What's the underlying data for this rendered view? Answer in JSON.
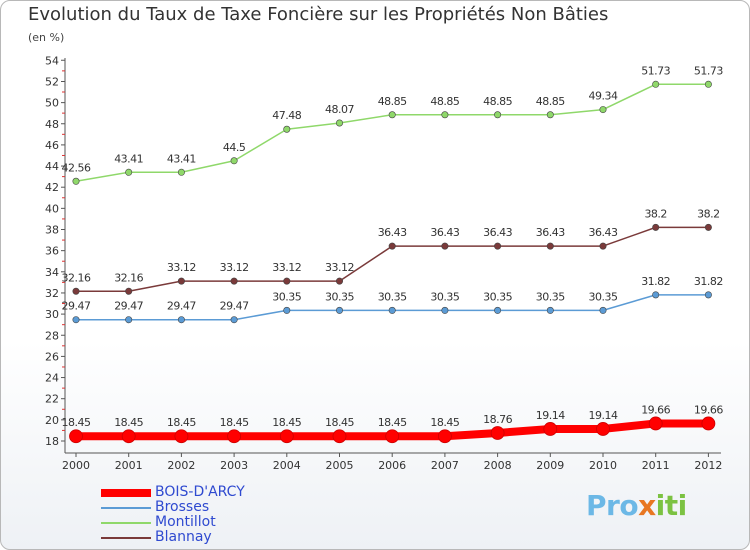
{
  "chart_data": {
    "type": "line",
    "title": "Evolution du Taux de Taxe Foncière sur les Propriétés Non Bâties",
    "ylabel": "(en %)",
    "categories": [
      "2000",
      "2001",
      "2002",
      "2003",
      "2004",
      "2005",
      "2006",
      "2007",
      "2008",
      "2009",
      "2010",
      "2011",
      "2012"
    ],
    "ylim": [
      17,
      55
    ],
    "yticks": [
      18,
      20,
      22,
      24,
      26,
      28,
      30,
      32,
      34,
      36,
      38,
      40,
      42,
      44,
      46,
      48,
      50,
      52,
      54
    ],
    "grid": false,
    "legend_position": "bottom-left",
    "series": [
      {
        "name": "BOIS-D'ARCY",
        "color": "#ff0000",
        "labels": [
          "18.45",
          "18.45",
          "18.45",
          "18.45",
          "18.45",
          "18.45",
          "18.45",
          "18.45",
          "18.76",
          "19.14",
          "19.14",
          "19.66",
          "19.66"
        ],
        "values": [
          18.45,
          18.45,
          18.45,
          18.45,
          18.45,
          18.45,
          18.45,
          18.45,
          18.76,
          19.14,
          19.14,
          19.66,
          19.66
        ]
      },
      {
        "name": "Brosses",
        "color": "#5b9bd5",
        "labels": [
          "29.47",
          "29.47",
          "29.47",
          "29.47",
          "30.35",
          "30.35",
          "30.35",
          "30.35",
          "30.35",
          "30.35",
          "30.35",
          "31.82",
          "31.82"
        ],
        "values": [
          29.47,
          29.47,
          29.47,
          29.47,
          30.35,
          30.35,
          30.35,
          30.35,
          30.35,
          30.35,
          30.35,
          31.82,
          31.82
        ]
      },
      {
        "name": "Montillot",
        "color": "#8fd86a",
        "labels": [
          "42.56",
          "43.41",
          "43.41",
          "44.5",
          "47.48",
          "48.07",
          "48.85",
          "48.85",
          "48.85",
          "48.85",
          "49.34",
          "51.73",
          "51.73"
        ],
        "values": [
          42.56,
          43.41,
          43.41,
          44.5,
          47.48,
          48.07,
          48.85,
          48.85,
          48.85,
          48.85,
          49.34,
          51.73,
          51.73
        ]
      },
      {
        "name": "Blannay",
        "color": "#7a3a3a",
        "labels": [
          "32.16",
          "32.16",
          "33.12",
          "33.12",
          "33.12",
          "33.12",
          "36.43",
          "36.43",
          "36.43",
          "36.43",
          "36.43",
          "38.2",
          "38.2"
        ],
        "values": [
          32.16,
          32.16,
          33.12,
          33.12,
          33.12,
          33.12,
          36.43,
          36.43,
          36.43,
          36.43,
          36.43,
          38.2,
          38.2
        ]
      }
    ]
  },
  "logo": {
    "p1": "Pro",
    "p2": "x",
    "p3": "iti"
  }
}
